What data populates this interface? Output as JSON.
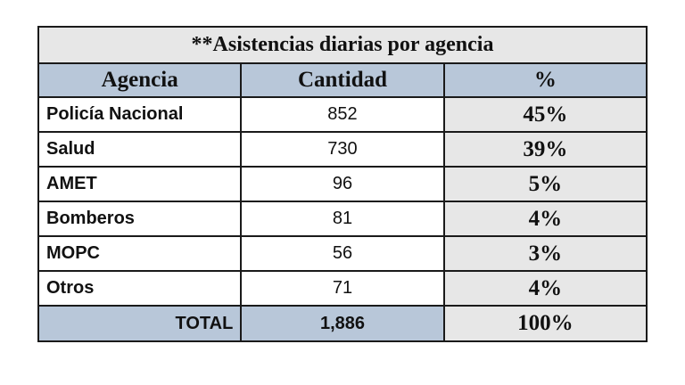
{
  "table": {
    "title": "**Asistencias diarias por agencia",
    "headers": {
      "agency": "Agencia",
      "quantity": "Cantidad",
      "percent": "%"
    },
    "rows": [
      {
        "agency": "Policía Nacional",
        "quantity": "852",
        "percent": "45%"
      },
      {
        "agency": "Salud",
        "quantity": "730",
        "percent": "39%"
      },
      {
        "agency": "AMET",
        "quantity": "96",
        "percent": "5%"
      },
      {
        "agency": "Bomberos",
        "quantity": "81",
        "percent": "4%"
      },
      {
        "agency": "MOPC",
        "quantity": "56",
        "percent": "3%"
      },
      {
        "agency": "Otros",
        "quantity": "71",
        "percent": "4%"
      }
    ],
    "total": {
      "label": "TOTAL",
      "quantity": "1,886",
      "percent": "100%"
    }
  },
  "colors": {
    "header_fill": "#b8c7d9",
    "title_fill": "#e7e7e7",
    "percent_fill": "#e7e7e7",
    "border": "#1a1a1a"
  }
}
